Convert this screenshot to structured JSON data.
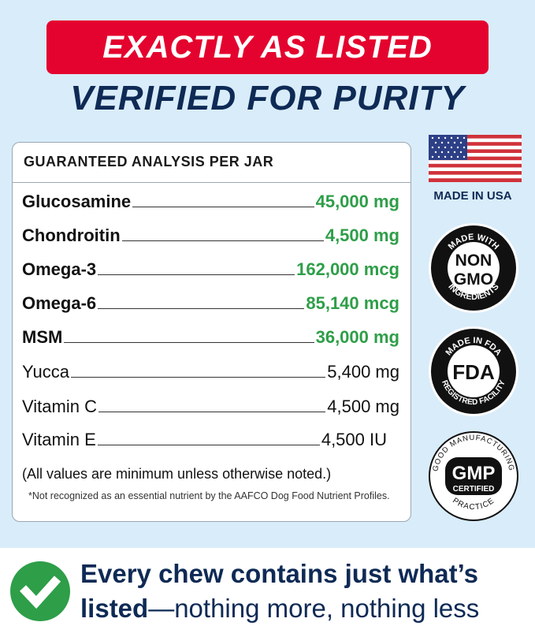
{
  "header": {
    "banner": "EXACTLY AS LISTED",
    "subtitle": "VERIFIED FOR PURITY"
  },
  "analysis": {
    "title": "GUARANTEED ANALYSIS PER JAR",
    "rows": [
      {
        "name": "Glucosamine",
        "value": "45,000 mg"
      },
      {
        "name": "Chondroitin",
        "value": "4,500 mg"
      },
      {
        "name": "Omega-3",
        "value": "162,000 mcg"
      },
      {
        "name": "Omega-6",
        "value": "85,140 mcg"
      },
      {
        "name": "MSM",
        "value": "36,000 mg"
      },
      {
        "name": "Yucca",
        "value": "5,400 mg"
      },
      {
        "name": "Vitamin C",
        "value": "4,500 mg"
      },
      {
        "name": "Vitamin E",
        "value": "4,500 IU"
      }
    ],
    "note": "(All values are minimum unless otherwise noted.)",
    "footnote": "*Not recognized as an essential nutrient by the AAFCO Dog Food Nutrient Profiles."
  },
  "badges": {
    "usa": "MADE IN USA",
    "nongmo": {
      "top": "MADE WITH",
      "center1": "NON",
      "center2": "GMO",
      "bottom": "INGREDIENTS"
    },
    "fda": {
      "top": "MADE IN FDA",
      "center": "FDA",
      "bottom": "REGISTRED FACILITY"
    },
    "gmp": {
      "top": "GOOD MANUFACTURING",
      "center": "GMP",
      "center2": "CERTIFIED",
      "bottom": "PRACTICE"
    }
  },
  "tagline": {
    "line1": "Every chew contains just what’s",
    "bold": "listed",
    "rest": "—nothing more, nothing less"
  },
  "colors": {
    "red": "#e4032e",
    "navy": "#0e2a55",
    "green": "#2e9e48",
    "background": "#d9ecf9"
  }
}
